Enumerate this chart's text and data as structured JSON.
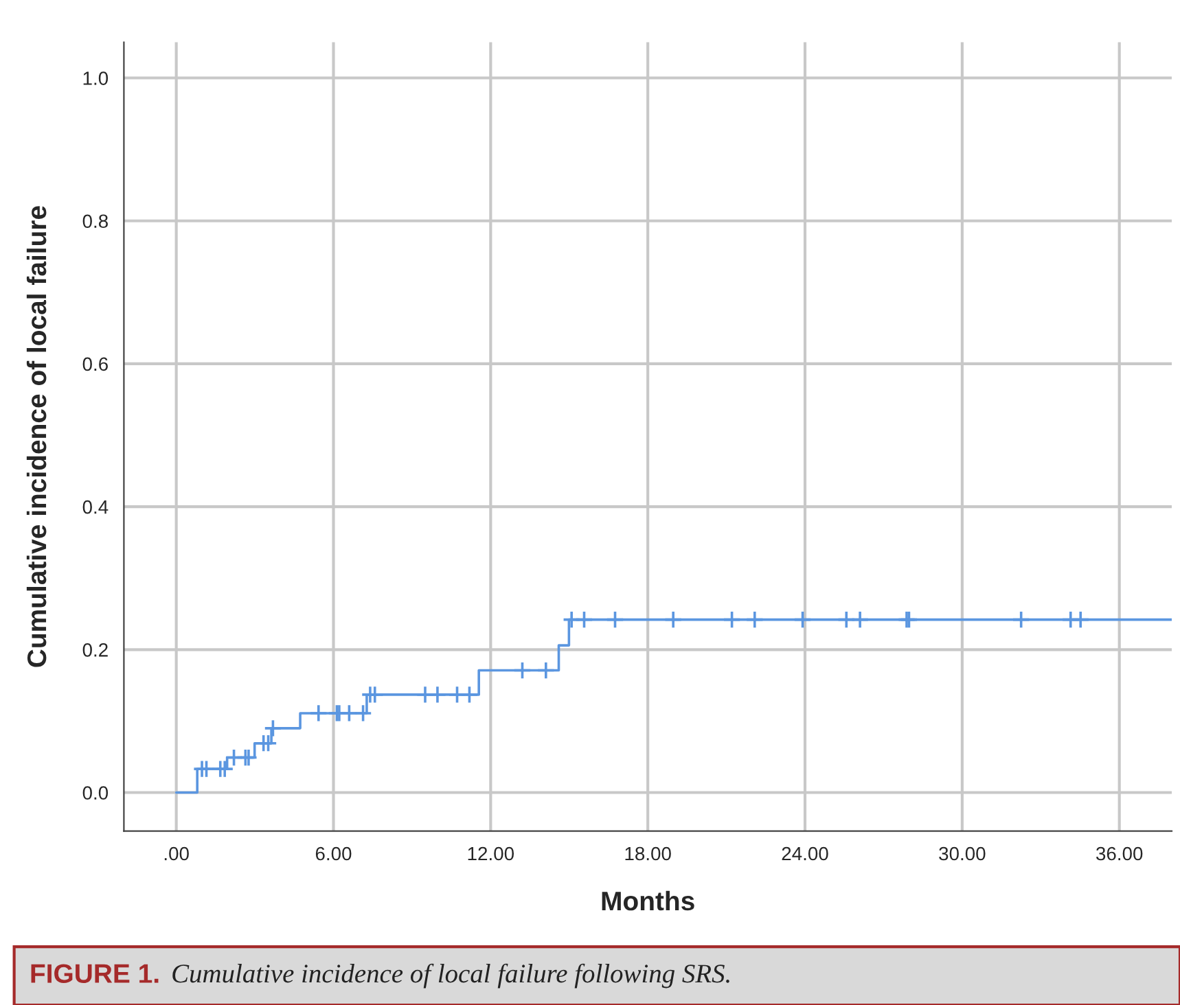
{
  "chart_data": {
    "type": "step",
    "xlabel": "Months",
    "ylabel": "Cumulative incidence of local failure",
    "annotations": [
      "FIGURE 1.",
      "Cumulative incidence of local failure following SRS."
    ],
    "series": [
      {
        "color": "#5b96e0",
        "x": [
          0,
          0.8,
          1.94,
          2.99,
          3.63,
          4.73,
          7.27,
          11.55,
          14.6,
          14.99,
          38
        ],
        "values": [
          0,
          0.033,
          0.049,
          0.069,
          0.09,
          0.111,
          0.137,
          0.171,
          0.206,
          0.242,
          0.242
        ]
      },
      {
        "type": "scatter",
        "marker": "cross",
        "color": "#5b96e0",
        "x": [
          0.98,
          1.15,
          1.68,
          1.85,
          2.2,
          2.64,
          2.76,
          3.33,
          3.51,
          3.69,
          5.43,
          6.13,
          6.22,
          6.6,
          7.13,
          7.4,
          7.58,
          9.5,
          9.97,
          10.72,
          11.19,
          13.21,
          14.11,
          15.09,
          15.57,
          16.75,
          18.97,
          21.21,
          22.08,
          23.91,
          25.58,
          26.1,
          27.88,
          27.97,
          32.25,
          34.14,
          34.52
        ],
        "values": [
          0.033,
          0.033,
          0.033,
          0.033,
          0.049,
          0.049,
          0.049,
          0.069,
          0.069,
          0.09,
          0.111,
          0.111,
          0.111,
          0.111,
          0.111,
          0.137,
          0.137,
          0.137,
          0.137,
          0.137,
          0.137,
          0.171,
          0.171,
          0.242,
          0.242,
          0.242,
          0.242,
          0.242,
          0.242,
          0.242,
          0.242,
          0.242,
          0.242,
          0.242,
          0.242,
          0.242,
          0.242
        ]
      }
    ],
    "xlim": [
      -2,
      38
    ],
    "ylim": [
      -0.054,
      1.05
    ],
    "xticks": [
      {
        "value": 0,
        "label": ".00"
      },
      {
        "value": 6,
        "label": "6.00"
      },
      {
        "value": 12,
        "label": "12.00"
      },
      {
        "value": 18,
        "label": "18.00"
      },
      {
        "value": 24,
        "label": "24.00"
      },
      {
        "value": 30,
        "label": "30.00"
      },
      {
        "value": 36,
        "label": "36.00"
      }
    ],
    "yticks": [
      {
        "value": 0,
        "label": "0.0"
      },
      {
        "value": 0.2,
        "label": "0.2"
      },
      {
        "value": 0.4,
        "label": "0.4"
      },
      {
        "value": 0.6,
        "label": "0.6"
      },
      {
        "value": 0.8,
        "label": "0.8"
      },
      {
        "value": 1.0,
        "label": "1.0"
      }
    ],
    "grid": true
  }
}
